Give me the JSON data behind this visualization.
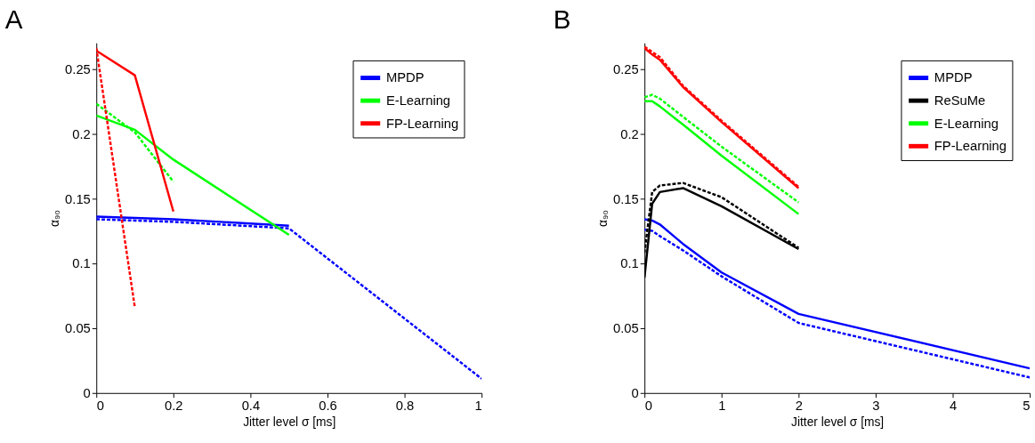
{
  "chart_data": [
    {
      "type": "line",
      "title": "A",
      "xlabel": "Jitter level σ [ms]",
      "ylabel": "α₉₀",
      "xlim": [
        0,
        1
      ],
      "xticks": [
        0,
        0.2,
        0.4,
        0.6,
        0.8,
        1
      ],
      "ylim": [
        0,
        0.27
      ],
      "yticks": [
        0,
        0.05,
        0.1,
        0.15,
        0.2,
        0.25
      ],
      "grid": false,
      "legend": "top right",
      "series": [
        {
          "name": "MPDP",
          "color": "#0000ff",
          "line_style": "solid",
          "x": [
            0,
            0.1,
            0.2,
            0.5
          ],
          "values": [
            0.136,
            0.135,
            0.134,
            0.129
          ]
        },
        {
          "color": "#0000ff",
          "line_style": "dashed",
          "x": [
            0,
            0.1,
            0.2,
            0.5,
            1
          ],
          "values": [
            0.134,
            0.133,
            0.132,
            0.127,
            0.011
          ]
        },
        {
          "name": "E-Learning",
          "color": "#00ff00",
          "line_style": "solid",
          "x": [
            0,
            0.1,
            0.2,
            0.5
          ],
          "values": [
            0.214,
            0.203,
            0.18,
            0.122
          ]
        },
        {
          "color": "#00ff00",
          "line_style": "dashed",
          "x": [
            0,
            0.1,
            0.2
          ],
          "values": [
            0.223,
            0.201,
            0.163
          ]
        },
        {
          "name": "FP-Learning",
          "color": "#ff0000",
          "line_style": "solid",
          "x": [
            0,
            0.1,
            0.2
          ],
          "values": [
            0.264,
            0.245,
            0.14
          ]
        },
        {
          "color": "#ff0000",
          "line_style": "dashed",
          "x": [
            0,
            0.1
          ],
          "values": [
            0.266,
            0.066
          ]
        }
      ]
    },
    {
      "type": "line",
      "title": "B",
      "xlabel": "Jitter level σ [ms]",
      "ylabel": "α₉₀",
      "xlim": [
        0,
        5
      ],
      "xticks": [
        0,
        1,
        2,
        3,
        4,
        5
      ],
      "ylim": [
        0,
        0.27
      ],
      "yticks": [
        0,
        0.05,
        0.1,
        0.15,
        0.2,
        0.25
      ],
      "grid": false,
      "legend": "top right",
      "series": [
        {
          "name": "MPDP",
          "color": "#0000ff",
          "line_style": "solid",
          "x": [
            0,
            0.1,
            0.2,
            0.5,
            1,
            2,
            5
          ],
          "values": [
            0.134,
            0.133,
            0.13,
            0.115,
            0.093,
            0.061,
            0.019
          ]
        },
        {
          "color": "#0000ff",
          "line_style": "dashed",
          "x": [
            0,
            0.1,
            0.2,
            0.5,
            1,
            2,
            5
          ],
          "values": [
            0.126,
            0.125,
            0.121,
            0.11,
            0.09,
            0.054,
            0.012
          ]
        },
        {
          "name": "ReSuMe",
          "color": "#000000",
          "line_style": "solid",
          "x": [
            0,
            0.1,
            0.2,
            0.5,
            1,
            2
          ],
          "values": [
            0.089,
            0.146,
            0.155,
            0.158,
            0.144,
            0.111
          ]
        },
        {
          "color": "#000000",
          "line_style": "dashed",
          "x": [
            0,
            0.1,
            0.2,
            0.5,
            1,
            2
          ],
          "values": [
            0.108,
            0.155,
            0.16,
            0.162,
            0.151,
            0.112
          ]
        },
        {
          "name": "E-Learning",
          "color": "#00ff00",
          "line_style": "solid",
          "x": [
            0,
            0.1,
            0.2,
            0.5,
            1,
            2
          ],
          "values": [
            0.225,
            0.225,
            0.221,
            0.207,
            0.183,
            0.138
          ]
        },
        {
          "color": "#00ff00",
          "line_style": "dashed",
          "x": [
            0,
            0.1,
            0.2,
            0.5,
            1,
            2
          ],
          "values": [
            0.228,
            0.23,
            0.227,
            0.213,
            0.19,
            0.147
          ]
        },
        {
          "name": "FP-Learning",
          "color": "#ff0000",
          "line_style": "solid",
          "x": [
            0,
            0.1,
            0.2,
            0.5,
            1,
            2
          ],
          "values": [
            0.266,
            0.261,
            0.257,
            0.236,
            0.209,
            0.158
          ]
        },
        {
          "color": "#ff0000",
          "line_style": "dashed",
          "x": [
            0,
            0.1,
            0.2,
            0.5,
            1,
            2
          ],
          "values": [
            0.267,
            0.263,
            0.259,
            0.237,
            0.21,
            0.159
          ]
        }
      ]
    }
  ]
}
